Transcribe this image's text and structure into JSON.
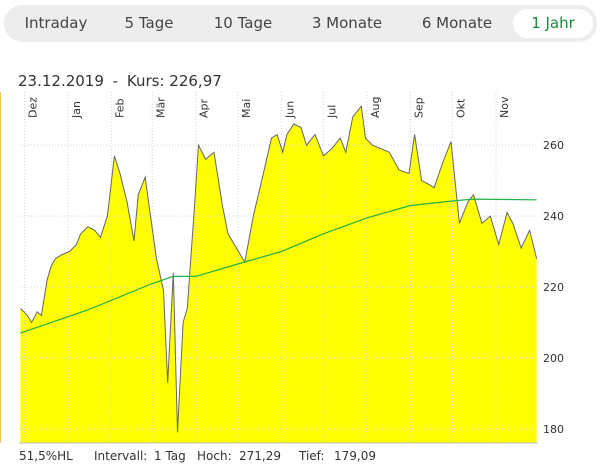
{
  "tabs": [
    {
      "label": "Intraday",
      "active": false
    },
    {
      "label": "5 Tage",
      "active": false
    },
    {
      "label": "10 Tage",
      "active": false
    },
    {
      "label": "3 Monate",
      "active": false
    },
    {
      "label": "6 Monate",
      "active": false
    },
    {
      "label": "1 Jahr",
      "active": true
    }
  ],
  "headline": {
    "date": "23.12.2019",
    "separator": "-",
    "price_label": "Kurs:",
    "price": "226,97"
  },
  "footer": {
    "hl": "51,5%HL",
    "interval_label": "Intervall:",
    "interval": "1 Tag",
    "high_label": "Hoch:",
    "high": "271,29",
    "low_label": "Tief:",
    "low": "179,09"
  },
  "colors": {
    "area": "#ffff00",
    "price_line": "#666666",
    "average_line": "#22b04a",
    "marker": "#f5a623",
    "active_tab": "#1a8a3a"
  },
  "chart_data": {
    "type": "area",
    "months": [
      "Dez",
      "Jan",
      "Feb",
      "Mär",
      "Apr",
      "Mai",
      "Jun",
      "Jul",
      "Aug",
      "Sep",
      "Okt",
      "Nov"
    ],
    "y_ticks": [
      180,
      200,
      220,
      240,
      260
    ],
    "ylim": [
      176,
      275
    ],
    "marker_date": "23.12.2019",
    "marker_label": "23.12.2019",
    "grid": true,
    "series": [
      {
        "kind": "price",
        "x": [
          "2019-11-28",
          "2019-12-03",
          "2019-12-06",
          "2019-12-10",
          "2019-12-13",
          "2019-12-17",
          "2019-12-20",
          "2019-12-23",
          "2019-12-27",
          "2020-01-02",
          "2020-01-07",
          "2020-01-10",
          "2020-01-15",
          "2020-01-20",
          "2020-01-24",
          "2020-01-29",
          "2020-02-03",
          "2020-02-07",
          "2020-02-12",
          "2020-02-17",
          "2020-02-20",
          "2020-02-25",
          "2020-02-28",
          "2020-03-04",
          "2020-03-09",
          "2020-03-12",
          "2020-03-16",
          "2020-03-19",
          "2020-03-23",
          "2020-03-26",
          "2020-03-31",
          "2020-04-03",
          "2020-04-08",
          "2020-04-14",
          "2020-04-20",
          "2020-04-24",
          "2020-04-30",
          "2020-05-06",
          "2020-05-12",
          "2020-05-18",
          "2020-05-25",
          "2020-05-29",
          "2020-06-02",
          "2020-06-05",
          "2020-06-10",
          "2020-06-15",
          "2020-06-19",
          "2020-06-25",
          "2020-07-01",
          "2020-07-07",
          "2020-07-13",
          "2020-07-17",
          "2020-07-22",
          "2020-07-28",
          "2020-07-31",
          "2020-08-05",
          "2020-08-11",
          "2020-08-17",
          "2020-08-24",
          "2020-08-31",
          "2020-09-04",
          "2020-09-09",
          "2020-09-14",
          "2020-09-18",
          "2020-09-24",
          "2020-09-30",
          "2020-10-06",
          "2020-10-12",
          "2020-10-16",
          "2020-10-22",
          "2020-10-28",
          "2020-11-03",
          "2020-11-09",
          "2020-11-13",
          "2020-11-19",
          "2020-11-25",
          "2020-11-30"
        ],
        "y": [
          214,
          212,
          210,
          213,
          212,
          222,
          226,
          228,
          229,
          230,
          232,
          235,
          237,
          236,
          234,
          240,
          257,
          252,
          244,
          233,
          246,
          251,
          242,
          228,
          219,
          193,
          224,
          179,
          210,
          214,
          242,
          260,
          256,
          258,
          243,
          235,
          231,
          227,
          240,
          250,
          262,
          263,
          258,
          263,
          266,
          265,
          260,
          263,
          257,
          259,
          262,
          258,
          268,
          271,
          262,
          260,
          259,
          258,
          253,
          252,
          263,
          250,
          249,
          248,
          255,
          261,
          238,
          244,
          246,
          238,
          240,
          232,
          241,
          238,
          231,
          236,
          228
        ]
      },
      {
        "kind": "average",
        "x": [
          "2019-11-28",
          "2020-01-15",
          "2020-03-01",
          "2020-03-16",
          "2020-04-01",
          "2020-05-01",
          "2020-06-01",
          "2020-07-01",
          "2020-08-01",
          "2020-09-01",
          "2020-09-25",
          "2020-10-15",
          "2020-11-30"
        ],
        "y": [
          207.0,
          213.5,
          221.0,
          223.0,
          223.0,
          226.5,
          230.0,
          235.0,
          239.5,
          243.0,
          244.0,
          244.8,
          244.6
        ]
      }
    ]
  }
}
